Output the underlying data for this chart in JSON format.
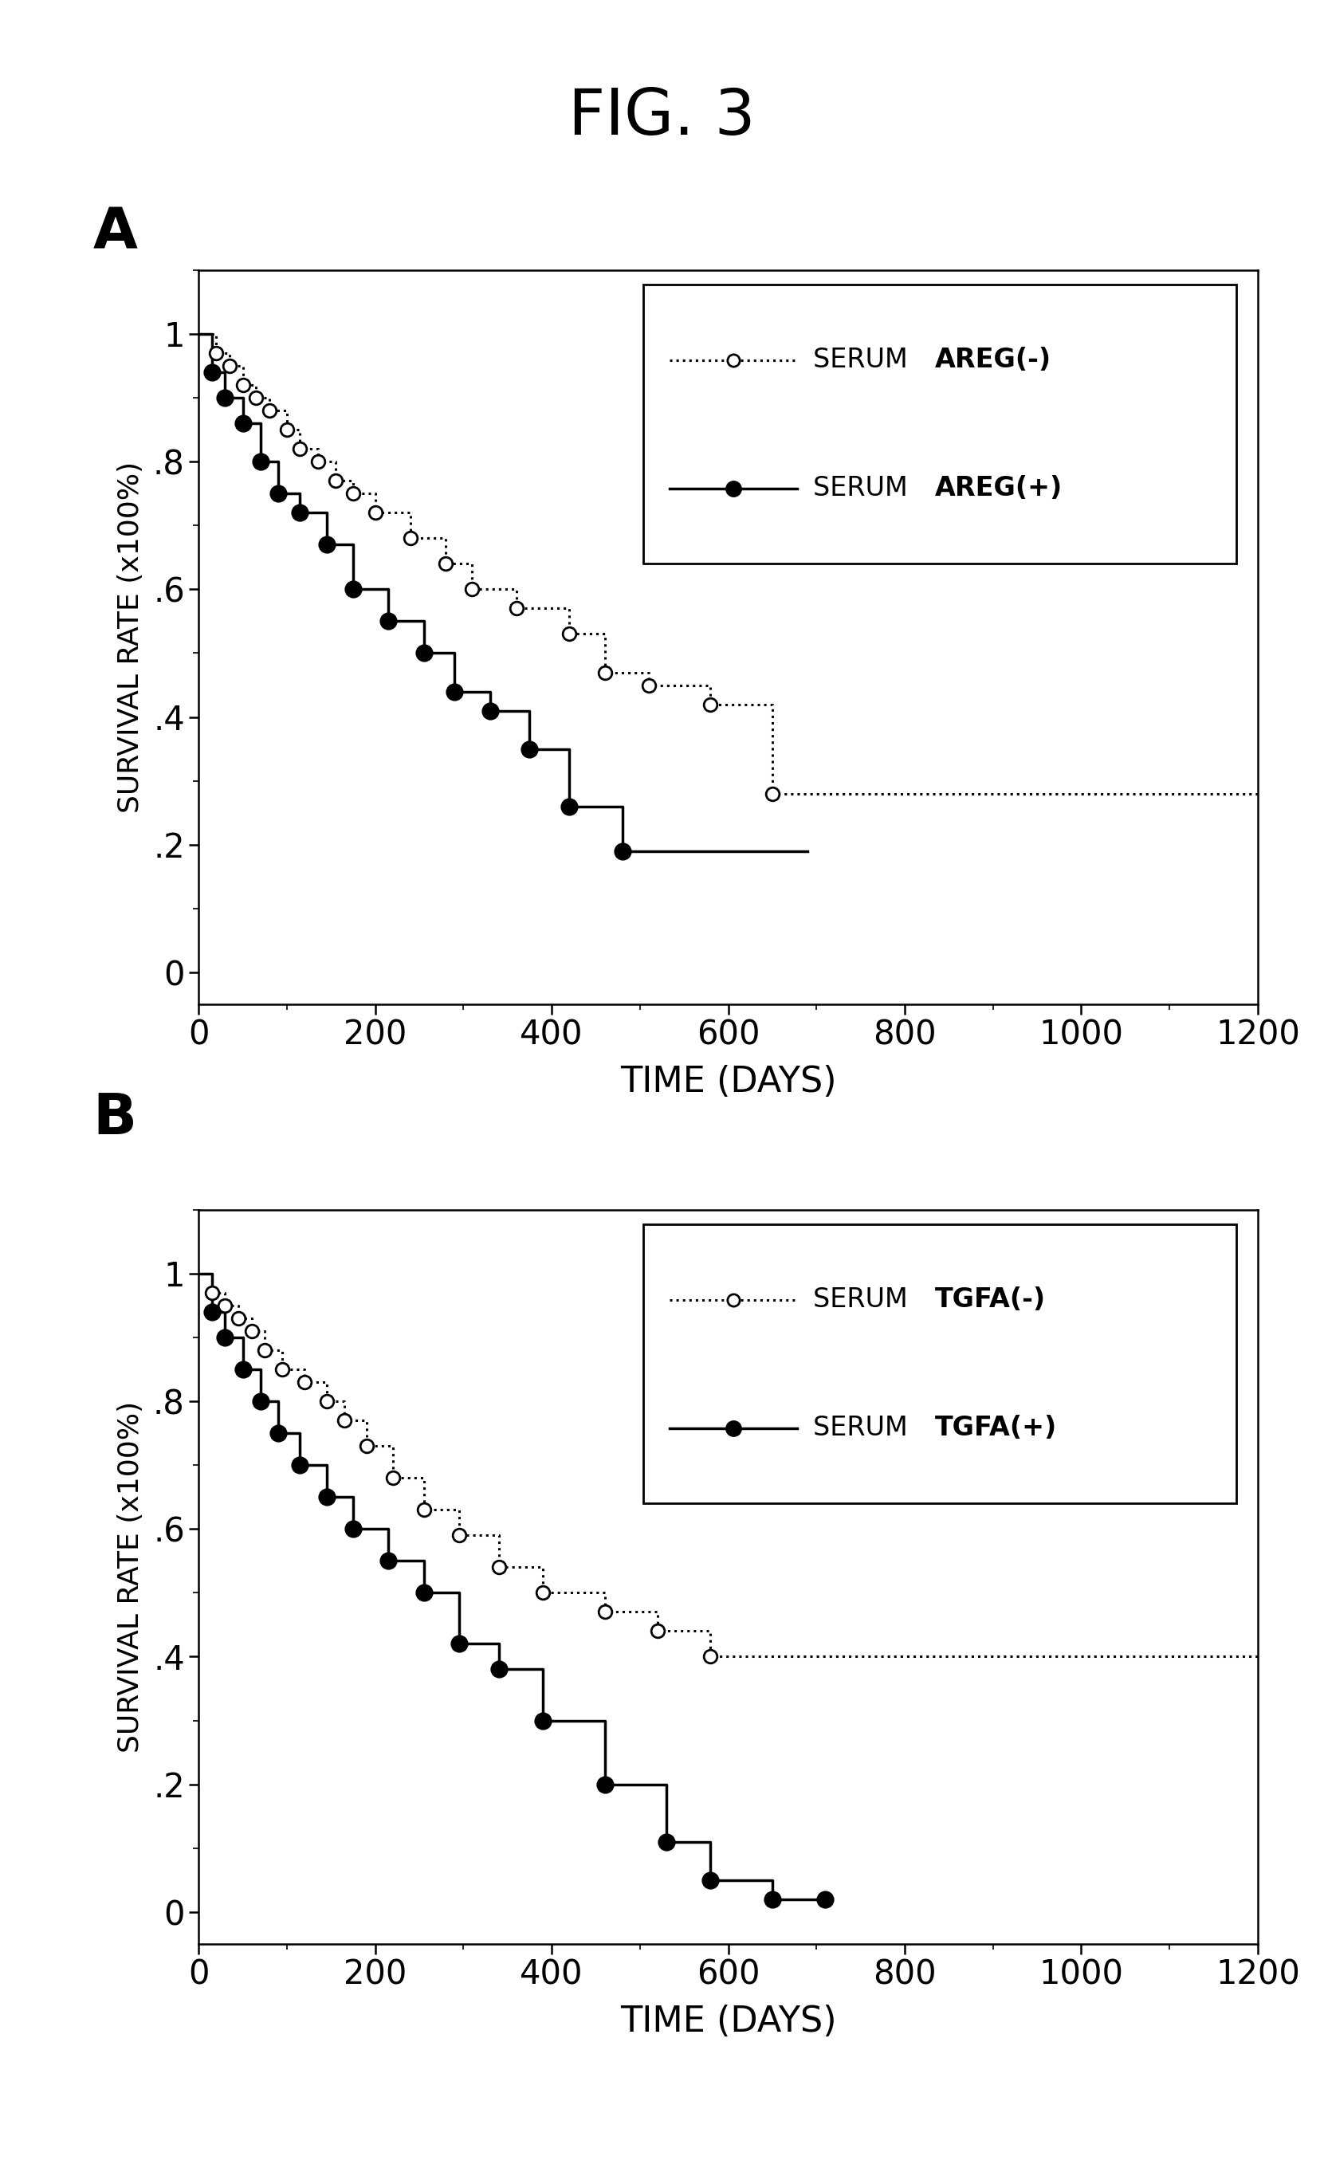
{
  "title": "FIG. 3",
  "panel_A_label": "A",
  "panel_B_label": "B",
  "xlabel": "TIME (DAYS)",
  "ylabel": "SURVIVAL RATE (x100%)",
  "xlim": [
    0,
    1200
  ],
  "xticks": [
    0,
    200,
    400,
    600,
    800,
    1000,
    1200
  ],
  "yticks": [
    0,
    0.2,
    0.4,
    0.6,
    0.8,
    1.0
  ],
  "ytick_labels": [
    "0",
    ".2",
    ".4",
    ".6",
    ".8",
    "1"
  ],
  "A_neg_x": [
    0,
    20,
    20,
    35,
    35,
    50,
    50,
    65,
    65,
    80,
    80,
    100,
    100,
    115,
    115,
    135,
    135,
    155,
    155,
    175,
    175,
    200,
    200,
    240,
    240,
    280,
    280,
    310,
    310,
    360,
    360,
    420,
    420,
    460,
    460,
    510,
    510,
    580,
    580,
    650,
    650,
    1200
  ],
  "A_neg_y": [
    1.0,
    1.0,
    0.97,
    0.97,
    0.95,
    0.95,
    0.92,
    0.92,
    0.9,
    0.9,
    0.88,
    0.88,
    0.85,
    0.85,
    0.82,
    0.82,
    0.8,
    0.8,
    0.77,
    0.77,
    0.75,
    0.75,
    0.72,
    0.72,
    0.68,
    0.68,
    0.64,
    0.64,
    0.6,
    0.6,
    0.57,
    0.57,
    0.53,
    0.53,
    0.47,
    0.47,
    0.45,
    0.45,
    0.42,
    0.42,
    0.28,
    0.28
  ],
  "A_neg_mk_x": [
    20,
    35,
    50,
    65,
    80,
    100,
    115,
    135,
    155,
    175,
    200,
    240,
    280,
    310,
    360,
    420,
    460,
    510,
    580,
    650
  ],
  "A_neg_mk_y": [
    0.97,
    0.95,
    0.92,
    0.9,
    0.88,
    0.85,
    0.82,
    0.8,
    0.77,
    0.75,
    0.72,
    0.68,
    0.64,
    0.6,
    0.57,
    0.53,
    0.47,
    0.45,
    0.42,
    0.28
  ],
  "A_pos_x": [
    0,
    15,
    15,
    30,
    30,
    50,
    50,
    70,
    70,
    90,
    90,
    115,
    115,
    145,
    145,
    175,
    175,
    215,
    215,
    255,
    255,
    290,
    290,
    330,
    330,
    375,
    375,
    420,
    420,
    480,
    480,
    690
  ],
  "A_pos_y": [
    1.0,
    1.0,
    0.94,
    0.94,
    0.9,
    0.9,
    0.86,
    0.86,
    0.8,
    0.8,
    0.75,
    0.75,
    0.72,
    0.72,
    0.67,
    0.67,
    0.6,
    0.6,
    0.55,
    0.55,
    0.5,
    0.5,
    0.44,
    0.44,
    0.41,
    0.41,
    0.35,
    0.35,
    0.26,
    0.26,
    0.19,
    0.19
  ],
  "A_pos_mk_x": [
    15,
    30,
    50,
    70,
    90,
    115,
    145,
    175,
    215,
    255,
    290,
    330,
    375,
    420,
    480
  ],
  "A_pos_mk_y": [
    0.94,
    0.9,
    0.86,
    0.8,
    0.75,
    0.72,
    0.67,
    0.6,
    0.55,
    0.5,
    0.44,
    0.41,
    0.35,
    0.26,
    0.19
  ],
  "B_neg_x": [
    0,
    15,
    15,
    30,
    30,
    45,
    45,
    60,
    60,
    75,
    75,
    95,
    95,
    120,
    120,
    145,
    145,
    165,
    165,
    190,
    190,
    220,
    220,
    255,
    255,
    295,
    295,
    340,
    340,
    390,
    390,
    460,
    460,
    520,
    520,
    580,
    580,
    1200
  ],
  "B_neg_y": [
    1.0,
    1.0,
    0.97,
    0.97,
    0.95,
    0.95,
    0.93,
    0.93,
    0.91,
    0.91,
    0.88,
    0.88,
    0.85,
    0.85,
    0.83,
    0.83,
    0.8,
    0.8,
    0.77,
    0.77,
    0.73,
    0.73,
    0.68,
    0.68,
    0.63,
    0.63,
    0.59,
    0.59,
    0.54,
    0.54,
    0.5,
    0.5,
    0.47,
    0.47,
    0.44,
    0.44,
    0.4,
    0.4
  ],
  "B_neg_mk_x": [
    15,
    30,
    45,
    60,
    75,
    95,
    120,
    145,
    165,
    190,
    220,
    255,
    295,
    340,
    390,
    460,
    520,
    580
  ],
  "B_neg_mk_y": [
    0.97,
    0.95,
    0.93,
    0.91,
    0.88,
    0.85,
    0.83,
    0.8,
    0.77,
    0.73,
    0.68,
    0.63,
    0.59,
    0.54,
    0.5,
    0.47,
    0.44,
    0.4
  ],
  "B_pos_x": [
    0,
    15,
    15,
    30,
    30,
    50,
    50,
    70,
    70,
    90,
    90,
    115,
    115,
    145,
    145,
    175,
    175,
    215,
    215,
    255,
    255,
    295,
    295,
    340,
    340,
    390,
    390,
    460,
    460,
    530,
    530,
    580,
    580,
    650,
    650,
    710
  ],
  "B_pos_y": [
    1.0,
    1.0,
    0.94,
    0.94,
    0.9,
    0.9,
    0.85,
    0.85,
    0.8,
    0.8,
    0.75,
    0.75,
    0.7,
    0.7,
    0.65,
    0.65,
    0.6,
    0.6,
    0.55,
    0.55,
    0.5,
    0.5,
    0.42,
    0.42,
    0.38,
    0.38,
    0.3,
    0.3,
    0.2,
    0.2,
    0.11,
    0.11,
    0.05,
    0.05,
    0.02,
    0.02
  ],
  "B_pos_mk_x": [
    15,
    30,
    50,
    70,
    90,
    115,
    145,
    175,
    215,
    255,
    295,
    340,
    390,
    460,
    530,
    580,
    650,
    710
  ],
  "B_pos_mk_y": [
    0.94,
    0.9,
    0.85,
    0.8,
    0.75,
    0.7,
    0.65,
    0.6,
    0.55,
    0.5,
    0.42,
    0.38,
    0.3,
    0.2,
    0.11,
    0.05,
    0.02,
    0.02
  ],
  "background_color": "#ffffff"
}
